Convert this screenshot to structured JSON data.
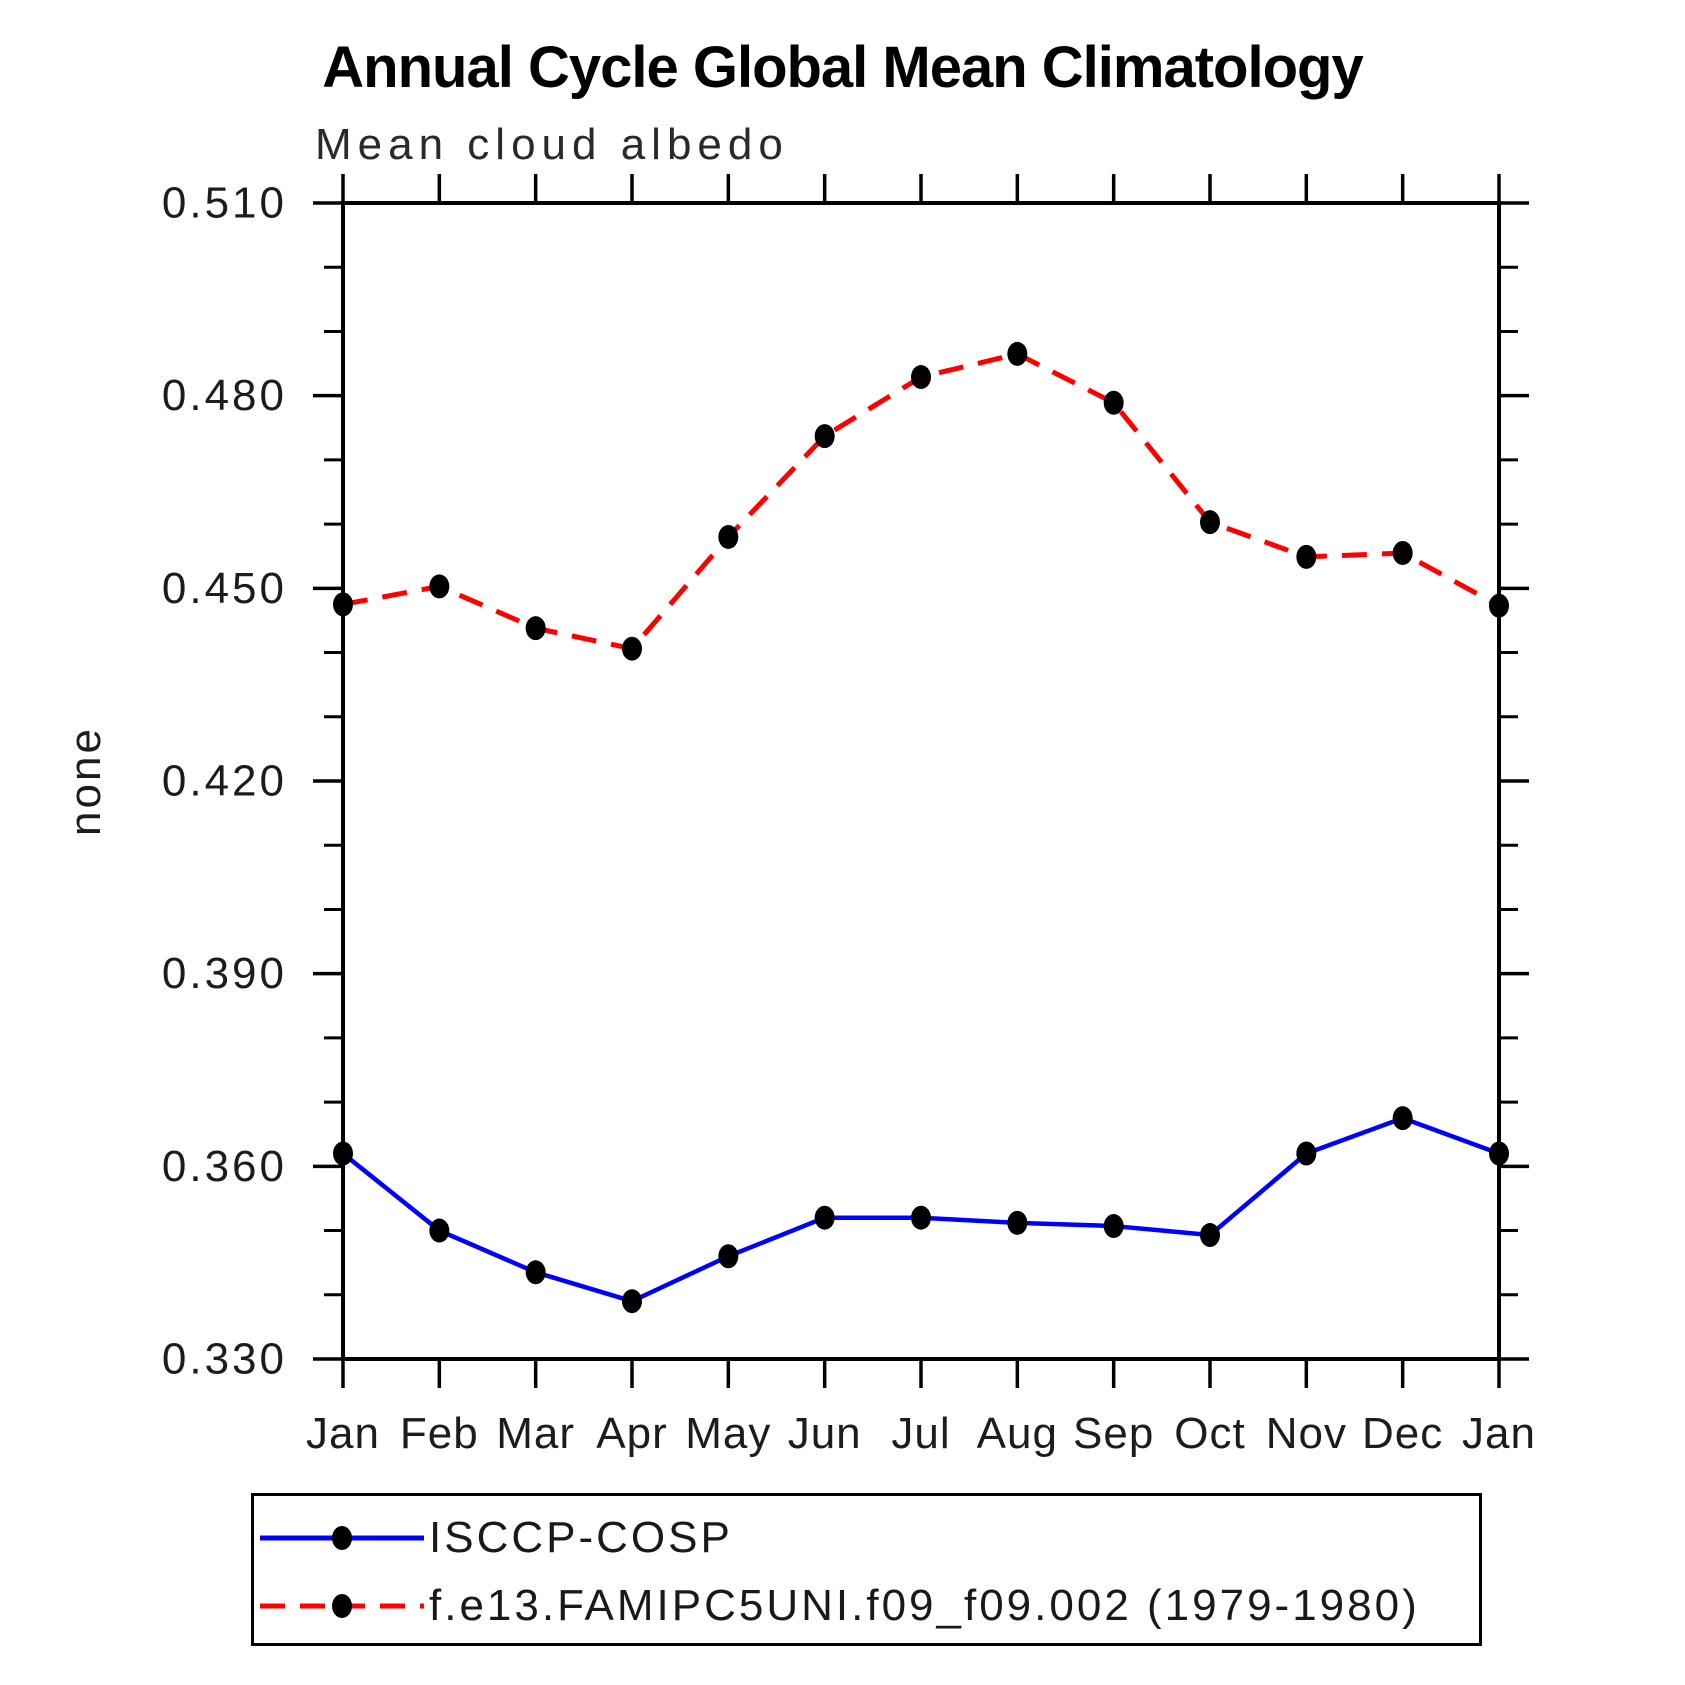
{
  "header": {
    "title": "Annual Cycle Global Mean Climatology",
    "subtitle": "Mean cloud albedo"
  },
  "y_axis": {
    "label": "none",
    "tick_labels": [
      "0.330",
      "0.360",
      "0.390",
      "0.420",
      "0.450",
      "0.480",
      "0.510"
    ],
    "min": 0.33,
    "max": 0.51,
    "major_step": 0.03,
    "minor_step": 0.01
  },
  "x_axis": {
    "tick_labels": [
      "Jan",
      "Feb",
      "Mar",
      "Apr",
      "May",
      "Jun",
      "Jul",
      "Aug",
      "Sep",
      "Oct",
      "Nov",
      "Dec",
      "Jan"
    ]
  },
  "legend": {
    "entries": [
      {
        "label": "ISCCP-COSP",
        "color": "#0000ff",
        "line_style": "solid",
        "marker": "circle"
      },
      {
        "label": "f.e13.FAMIPC5UNI.f09_f09.002 (1979-1980)",
        "color": "#ff0000",
        "line_style": "dashed",
        "marker": "circle"
      }
    ]
  },
  "colors": {
    "axis": "#000000",
    "series_blue": "#0000ff",
    "series_red": "#ff0000",
    "marker": "#000000"
  },
  "chart_data": {
    "type": "line",
    "title": "Annual Cycle Global Mean Climatology",
    "subtitle": "Mean cloud albedo",
    "xlabel": "",
    "ylabel": "none",
    "ylim": [
      0.33,
      0.51
    ],
    "y_major_ticks": [
      0.33,
      0.36,
      0.39,
      0.42,
      0.45,
      0.48,
      0.51
    ],
    "y_tick_labels": [
      "0.330",
      "0.360",
      "0.390",
      "0.420",
      "0.450",
      "0.480",
      "0.510"
    ],
    "y_minor_step": 0.01,
    "grid": false,
    "legend_position": "bottom-left",
    "categories": [
      "Jan",
      "Feb",
      "Mar",
      "Apr",
      "May",
      "Jun",
      "Jul",
      "Aug",
      "Sep",
      "Oct",
      "Nov",
      "Dec",
      "Jan"
    ],
    "series": [
      {
        "name": "ISCCP-COSP",
        "color": "#0000ff",
        "line_style": "solid",
        "marker": "circle",
        "values": [
          0.362,
          0.35,
          0.3435,
          0.339,
          0.346,
          0.352,
          0.352,
          0.3512,
          0.3507,
          0.3493,
          0.362,
          0.3675,
          0.362
        ]
      },
      {
        "name": "f.e13.FAMIPC5UNI.f09_f09.002 (1979-1980)",
        "color": "#ff0000",
        "line_style": "dashed",
        "marker": "circle",
        "values": [
          0.4475,
          0.4503,
          0.4438,
          0.4406,
          0.458,
          0.4737,
          0.4829,
          0.4865,
          0.4789,
          0.4603,
          0.4549,
          0.4555,
          0.4473
        ]
      }
    ]
  }
}
